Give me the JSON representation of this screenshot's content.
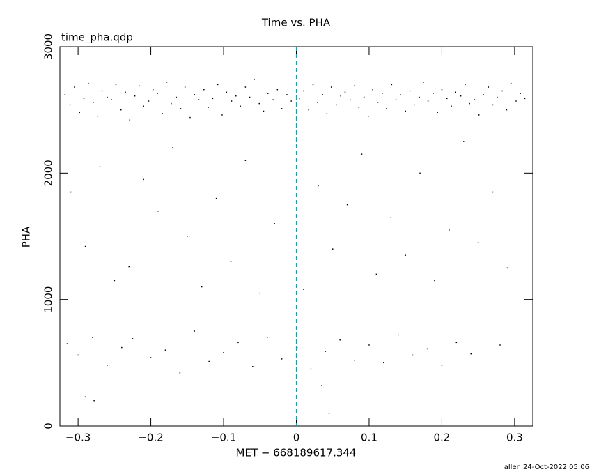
{
  "chart_data": {
    "type": "scatter",
    "title": "Time vs. PHA",
    "subtitle": "time_pha.qdp",
    "x_label": "MET − 668189617.344",
    "y_label": "PHA",
    "footer": "allen 24-Oct-2022 05:06",
    "color": "#000000",
    "vline": {
      "value": 0,
      "color": "#2a9aa0"
    },
    "xlim": [
      -0.325,
      0.325
    ],
    "ylim": [
      0,
      3000
    ],
    "xticks": [
      {
        "value": -0.3,
        "label": "−0.3"
      },
      {
        "value": -0.2,
        "label": "−0.2"
      },
      {
        "value": -0.1,
        "label": "−0.1"
      },
      0,
      0.1,
      0.2,
      0.3
    ],
    "yticks": [
      0,
      1000,
      2000,
      3000
    ],
    "x": [
      -0.318,
      -0.311,
      -0.305,
      -0.298,
      -0.292,
      -0.286,
      -0.279,
      -0.273,
      -0.267,
      -0.26,
      -0.254,
      -0.248,
      -0.241,
      -0.235,
      -0.229,
      -0.222,
      -0.216,
      -0.21,
      -0.203,
      -0.197,
      -0.191,
      -0.184,
      -0.178,
      -0.172,
      -0.165,
      -0.159,
      -0.153,
      -0.146,
      -0.14,
      -0.134,
      -0.127,
      -0.121,
      -0.115,
      -0.108,
      -0.102,
      -0.096,
      -0.089,
      -0.083,
      -0.077,
      -0.07,
      -0.064,
      -0.058,
      -0.051,
      -0.045,
      -0.039,
      -0.032,
      -0.026,
      -0.02,
      -0.013,
      -0.007,
      0.004,
      0.01,
      0.017,
      0.023,
      0.029,
      0.036,
      0.042,
      0.048,
      0.055,
      0.061,
      0.067,
      0.074,
      0.08,
      0.086,
      0.093,
      0.099,
      0.105,
      0.112,
      0.118,
      0.124,
      0.131,
      0.137,
      0.143,
      0.15,
      0.156,
      0.162,
      0.169,
      0.175,
      0.181,
      0.188,
      0.194,
      0.2,
      0.207,
      0.213,
      0.219,
      0.226,
      0.232,
      0.238,
      0.245,
      0.251,
      0.257,
      0.264,
      0.27,
      0.276,
      0.283,
      0.289,
      0.295,
      0.302,
      0.308,
      0.314,
      -0.31,
      -0.29,
      -0.27,
      -0.25,
      -0.23,
      -0.21,
      -0.19,
      -0.17,
      -0.15,
      -0.13,
      -0.11,
      -0.09,
      -0.07,
      -0.05,
      -0.03,
      0.01,
      0.03,
      0.05,
      0.07,
      0.09,
      0.11,
      0.13,
      0.15,
      0.17,
      0.19,
      0.21,
      0.23,
      0.25,
      0.27,
      0.29,
      -0.315,
      -0.3,
      -0.28,
      -0.26,
      -0.24,
      -0.225,
      -0.2,
      -0.18,
      -0.16,
      -0.14,
      -0.12,
      -0.1,
      -0.08,
      -0.06,
      -0.04,
      -0.02,
      0.001,
      0.02,
      0.04,
      0.06,
      0.08,
      0.1,
      0.12,
      0.14,
      0.16,
      0.18,
      0.2,
      0.22,
      0.24,
      0.28,
      -0.29,
      -0.278,
      0.045,
      0.035
    ],
    "values": [
      2620,
      2540,
      2680,
      2480,
      2590,
      2710,
      2560,
      2450,
      2650,
      2600,
      2580,
      2700,
      2500,
      2640,
      2420,
      2610,
      2690,
      2530,
      2570,
      2660,
      2630,
      2470,
      2720,
      2550,
      2600,
      2510,
      2680,
      2440,
      2620,
      2580,
      2660,
      2520,
      2590,
      2700,
      2460,
      2640,
      2570,
      2610,
      2530,
      2680,
      2600,
      2740,
      2550,
      2490,
      2630,
      2580,
      2660,
      2510,
      2620,
      2570,
      2590,
      2650,
      2500,
      2700,
      2560,
      2620,
      2470,
      2680,
      2540,
      2610,
      2640,
      2580,
      2690,
      2520,
      2600,
      2450,
      2660,
      2560,
      2630,
      2510,
      2700,
      2580,
      2620,
      2490,
      2650,
      2540,
      2600,
      2720,
      2570,
      2630,
      2480,
      2660,
      2590,
      2530,
      2640,
      2610,
      2700,
      2550,
      2580,
      2460,
      2620,
      2680,
      2540,
      2600,
      2650,
      2500,
      2710,
      2570,
      2630,
      2590,
      1850,
      1420,
      2050,
      1150,
      1260,
      1950,
      1700,
      2200,
      1500,
      1100,
      1800,
      1300,
      2100,
      1050,
      1600,
      1080,
      1900,
      1400,
      1750,
      2150,
      1200,
      1650,
      1350,
      2000,
      1150,
      1550,
      2250,
      1450,
      1850,
      1250,
      650,
      560,
      700,
      480,
      620,
      690,
      540,
      600,
      420,
      750,
      510,
      580,
      660,
      470,
      700,
      530,
      620,
      450,
      590,
      680,
      520,
      640,
      500,
      720,
      560,
      610,
      480,
      660,
      570,
      640,
      230,
      200,
      100,
      320
    ]
  }
}
